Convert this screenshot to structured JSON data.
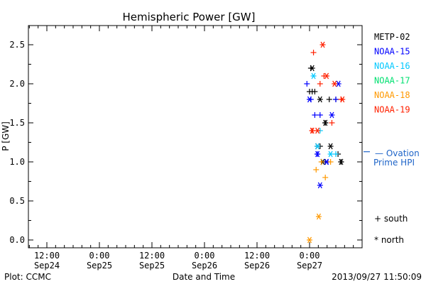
{
  "chart_data": {
    "type": "scatter",
    "title": "Hemispheric Power [GW]",
    "xlabel": "Date and Time",
    "ylabel": "P [GW]",
    "ylim": [
      0.0,
      2.75
    ],
    "y_ticks": [
      "0.0",
      "0.5",
      "1.0",
      "1.5",
      "2.0",
      "2.5"
    ],
    "x_ticks": [
      {
        "line1": "12:00",
        "line2": "Sep24"
      },
      {
        "line1": "0:00",
        "line2": "Sep25"
      },
      {
        "line1": "12:00",
        "line2": "Sep25"
      },
      {
        "line1": "0:00",
        "line2": "Sep26"
      },
      {
        "line1": "12:00",
        "line2": "Sep26"
      },
      {
        "line1": "0:00",
        "line2": "Sep27"
      }
    ],
    "grid": false,
    "legend_position": "right",
    "series": [
      {
        "name": "METP-02",
        "color": "#000000",
        "south": [
          [
            0.3,
            2.2
          ],
          [
            0.0,
            1.9
          ],
          [
            0.6,
            1.9
          ],
          [
            1.2,
            1.9
          ],
          [
            4.5,
            1.8
          ],
          [
            6.0,
            1.8
          ],
          [
            3.6,
            1.5
          ],
          [
            2.4,
            1.2
          ],
          [
            6.5,
            1.1
          ],
          [
            3.6,
            1.0
          ],
          [
            7.2,
            1.0
          ]
        ],
        "north": [
          [
            0.6,
            2.2
          ],
          [
            2.4,
            1.8
          ],
          [
            3.6,
            1.5
          ],
          [
            1.8,
            1.2
          ],
          [
            4.8,
            1.2
          ],
          [
            3.0,
            1.0
          ],
          [
            7.2,
            1.0
          ]
        ]
      },
      {
        "name": "NOAA-15",
        "color": "#0000ff",
        "south": [
          [
            -0.6,
            2.0
          ],
          [
            0.3,
            1.8
          ],
          [
            1.2,
            1.6
          ],
          [
            2.4,
            1.6
          ],
          [
            6.0,
            1.8
          ],
          [
            1.8,
            1.1
          ],
          [
            4.2,
            1.0
          ]
        ],
        "north": [
          [
            6.6,
            2.0
          ],
          [
            0.0,
            1.8
          ],
          [
            5.1,
            1.6
          ],
          [
            1.8,
            1.1
          ],
          [
            2.4,
            0.7
          ],
          [
            3.9,
            1.0
          ]
        ]
      },
      {
        "name": "NOAA-16",
        "color": "#00c8ff",
        "south": [
          [
            2.4,
            1.4
          ],
          [
            6.0,
            1.1
          ]
        ],
        "north": [
          [
            0.9,
            2.1
          ],
          [
            1.8,
            1.2
          ],
          [
            4.8,
            1.1
          ]
        ]
      },
      {
        "name": "NOAA-17",
        "color": "#00e070",
        "south": [],
        "north": []
      },
      {
        "name": "NOAA-18",
        "color": "#ff9900",
        "south": [
          [
            1.5,
            0.9
          ],
          [
            2.7,
            1.0
          ],
          [
            3.6,
            0.8
          ],
          [
            4.8,
            1.0
          ]
        ],
        "north": [
          [
            0.0,
            0.0
          ],
          [
            2.1,
            0.3
          ]
        ]
      },
      {
        "name": "NOAA-19",
        "color": "#ff2000",
        "south": [
          [
            0.9,
            2.4
          ],
          [
            2.4,
            2.0
          ],
          [
            3.3,
            2.1
          ],
          [
            0.6,
            1.4
          ],
          [
            5.1,
            1.5
          ],
          [
            7.2,
            1.8
          ]
        ],
        "north": [
          [
            3.0,
            2.5
          ],
          [
            3.9,
            2.1
          ],
          [
            5.7,
            2.0
          ],
          [
            7.5,
            1.8
          ],
          [
            0.6,
            1.4
          ],
          [
            1.8,
            1.4
          ]
        ]
      }
    ],
    "x_units": "hours relative to 0:00 Sep27",
    "ovation": {
      "label_line1": "— Ovation",
      "label_line2": "Prime HPI",
      "color": "#1e64c8",
      "value": 1.13
    },
    "symbol_legend": {
      "south": "+ south",
      "north": "* north"
    },
    "footer_left": "Plot: CCMC",
    "timestamp": "2013/09/27 11:50:09"
  }
}
